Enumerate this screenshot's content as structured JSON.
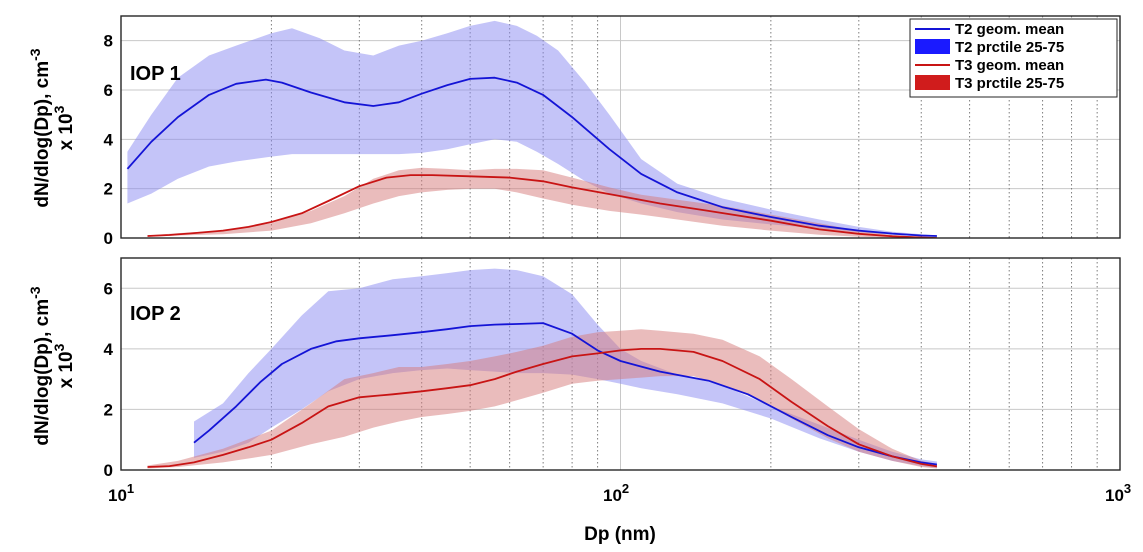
{
  "chart_data": [
    {
      "type": "area",
      "annotation": "IOP 1",
      "xlabel": "Dp (nm)",
      "ylabel": "dN/dlog(Dp), cm⁻³ x 10³",
      "ylabel_line1": "dN/dlog(Dp), cm",
      "ylabel_line1_sup": "-3",
      "ylabel_line2": "x 10",
      "ylabel_line2_sup": "3",
      "x_scale": "log",
      "xlim": [
        10,
        1000
      ],
      "ylim": [
        0,
        9
      ],
      "yticks": [
        "0",
        "2",
        "4",
        "6",
        "8"
      ],
      "grid": true,
      "legend_position": "top-right",
      "legend": [
        "T2 geom. mean",
        "T2 prctile 25-75",
        "T3 geom. mean",
        "T3 prctile 25-75"
      ],
      "series": [
        {
          "name": "T2 geom. mean",
          "kind": "line",
          "color": "#1414d6",
          "x": [
            10.3,
            11.5,
            13,
            15,
            17,
            19.5,
            21,
            24,
            28,
            32,
            36,
            40,
            45,
            50,
            56,
            62,
            70,
            80,
            95,
            110,
            130,
            160,
            200,
            250,
            300,
            350,
            400,
            430
          ],
          "values": [
            2.8,
            3.9,
            4.9,
            5.8,
            6.25,
            6.42,
            6.3,
            5.9,
            5.5,
            5.35,
            5.5,
            5.85,
            6.2,
            6.45,
            6.5,
            6.3,
            5.8,
            4.9,
            3.6,
            2.6,
            1.85,
            1.25,
            0.85,
            0.5,
            0.3,
            0.18,
            0.1,
            0.08
          ]
        },
        {
          "name": "T2 prctile 25-75",
          "kind": "band",
          "color": "#8a8af2",
          "x": [
            10.3,
            11.5,
            13,
            15,
            17,
            20,
            22,
            25,
            28,
            32,
            36,
            40,
            45,
            50,
            56,
            62,
            68,
            75,
            85,
            95,
            110,
            130,
            160,
            200,
            250,
            300,
            350,
            400,
            430
          ],
          "low": [
            1.4,
            1.8,
            2.4,
            2.9,
            3.1,
            3.3,
            3.4,
            3.4,
            3.4,
            3.4,
            3.4,
            3.45,
            3.6,
            3.8,
            4.0,
            3.9,
            3.5,
            3.0,
            2.3,
            1.8,
            1.4,
            1.05,
            0.75,
            0.55,
            0.38,
            0.23,
            0.13,
            0.06,
            0.05
          ],
          "high": [
            3.5,
            5.0,
            6.5,
            7.4,
            7.8,
            8.3,
            8.5,
            8.1,
            7.6,
            7.4,
            7.8,
            8.0,
            8.3,
            8.6,
            8.8,
            8.6,
            8.2,
            7.6,
            6.3,
            5.0,
            3.2,
            2.2,
            1.6,
            1.15,
            0.75,
            0.45,
            0.25,
            0.15,
            0.1
          ]
        },
        {
          "name": "T3 geom. mean",
          "kind": "line",
          "color": "#c81414",
          "x": [
            11.3,
            12.5,
            14,
            16,
            18,
            20,
            23,
            26,
            30,
            34,
            38,
            42,
            50,
            60,
            70,
            80,
            100,
            120,
            150,
            200,
            250,
            300,
            350,
            400,
            430
          ],
          "values": [
            0.08,
            0.12,
            0.2,
            0.3,
            0.45,
            0.65,
            1.0,
            1.5,
            2.1,
            2.45,
            2.55,
            2.55,
            2.5,
            2.45,
            2.3,
            2.05,
            1.7,
            1.4,
            1.1,
            0.7,
            0.35,
            0.17,
            0.07,
            0.02,
            0.0
          ]
        },
        {
          "name": "T3 prctile 25-75",
          "kind": "band",
          "color": "#d67a7a",
          "x": [
            11.3,
            13,
            16,
            20,
            24,
            28,
            32,
            36,
            40,
            45,
            50,
            56,
            62,
            70,
            80,
            95,
            110,
            130,
            160,
            200,
            250,
            300,
            350,
            400,
            430
          ],
          "low": [
            0.05,
            0.1,
            0.15,
            0.3,
            0.6,
            1.0,
            1.4,
            1.7,
            1.85,
            1.95,
            2.0,
            2.0,
            1.85,
            1.6,
            1.35,
            1.1,
            0.95,
            0.75,
            0.5,
            0.3,
            0.13,
            0.05,
            0.01,
            0.0,
            0.0
          ],
          "high": [
            0.1,
            0.2,
            0.3,
            0.6,
            1.1,
            1.7,
            2.4,
            2.75,
            2.85,
            2.8,
            2.75,
            2.8,
            2.8,
            2.75,
            2.45,
            2.05,
            1.75,
            1.55,
            1.3,
            0.95,
            0.6,
            0.3,
            0.12,
            0.04,
            0.02
          ]
        }
      ]
    },
    {
      "type": "area",
      "annotation": "IOP 2",
      "xlabel": "Dp (nm)",
      "ylabel": "dN/dlog(Dp), cm⁻³ x 10³",
      "ylabel_line1": "dN/dlog(Dp), cm",
      "ylabel_line1_sup": "-3",
      "ylabel_line2": "x 10",
      "ylabel_line2_sup": "3",
      "x_scale": "log",
      "xlim": [
        10,
        1000
      ],
      "ylim": [
        0,
        7
      ],
      "yticks": [
        "0",
        "2",
        "4",
        "6"
      ],
      "xtick_base": "10",
      "xtick_exponents": [
        "1",
        "2",
        "3"
      ],
      "grid": true,
      "series": [
        {
          "name": "T2 geom. mean",
          "kind": "line",
          "color": "#1414d6",
          "x": [
            14,
            15,
            17,
            19,
            21,
            24,
            27,
            30,
            35,
            40,
            45,
            50,
            56,
            62,
            70,
            80,
            90,
            100,
            120,
            150,
            180,
            220,
            260,
            300,
            350,
            400,
            430
          ],
          "values": [
            0.9,
            1.3,
            2.1,
            2.9,
            3.5,
            4.0,
            4.25,
            4.35,
            4.45,
            4.55,
            4.65,
            4.75,
            4.8,
            4.82,
            4.85,
            4.5,
            3.95,
            3.6,
            3.25,
            2.95,
            2.5,
            1.75,
            1.15,
            0.75,
            0.45,
            0.25,
            0.18
          ]
        },
        {
          "name": "T2 prctile 25-75",
          "kind": "band",
          "color": "#8a8af2",
          "x": [
            14,
            16,
            18,
            20,
            23,
            26,
            30,
            35,
            40,
            45,
            50,
            56,
            62,
            70,
            80,
            90,
            100,
            110,
            130,
            160,
            200,
            250,
            300,
            350,
            400,
            430
          ],
          "low": [
            0.4,
            0.6,
            0.9,
            1.4,
            2.0,
            2.6,
            3.0,
            3.2,
            3.3,
            3.35,
            3.3,
            3.25,
            3.2,
            3.2,
            3.15,
            3.0,
            2.85,
            2.7,
            2.5,
            2.2,
            1.7,
            1.05,
            0.6,
            0.3,
            0.13,
            0.07
          ],
          "high": [
            1.6,
            2.2,
            3.2,
            4.0,
            5.1,
            5.9,
            6.0,
            6.3,
            6.4,
            6.5,
            6.6,
            6.65,
            6.6,
            6.4,
            5.8,
            4.8,
            4.0,
            3.6,
            3.15,
            2.8,
            2.1,
            1.5,
            1.0,
            0.6,
            0.35,
            0.28
          ]
        },
        {
          "name": "T3 geom. mean",
          "kind": "line",
          "color": "#c81414",
          "x": [
            11.3,
            12.5,
            14,
            16,
            18,
            20,
            23,
            26,
            30,
            35,
            40,
            45,
            50,
            56,
            62,
            70,
            80,
            90,
            100,
            110,
            120,
            140,
            160,
            190,
            220,
            260,
            300,
            350,
            400,
            430
          ],
          "values": [
            0.1,
            0.13,
            0.25,
            0.5,
            0.75,
            1.0,
            1.55,
            2.1,
            2.4,
            2.5,
            2.6,
            2.7,
            2.8,
            3.0,
            3.25,
            3.5,
            3.75,
            3.85,
            3.95,
            4.0,
            4.0,
            3.9,
            3.6,
            3.0,
            2.25,
            1.45,
            0.85,
            0.45,
            0.2,
            0.12
          ]
        },
        {
          "name": "T3 prctile 25-75",
          "kind": "band",
          "color": "#d67a7a",
          "x": [
            11.3,
            13,
            16,
            20,
            24,
            28,
            32,
            36,
            40,
            45,
            50,
            56,
            62,
            70,
            80,
            90,
            100,
            110,
            120,
            140,
            160,
            190,
            220,
            260,
            300,
            350,
            400,
            430
          ],
          "low": [
            0.05,
            0.1,
            0.25,
            0.5,
            0.85,
            1.1,
            1.4,
            1.6,
            1.75,
            1.85,
            1.95,
            2.1,
            2.3,
            2.55,
            2.85,
            2.95,
            3.0,
            3.05,
            3.1,
            3.1,
            2.8,
            2.3,
            1.7,
            1.05,
            0.6,
            0.3,
            0.1,
            0.05
          ],
          "high": [
            0.15,
            0.3,
            0.7,
            1.3,
            2.2,
            3.0,
            3.2,
            3.4,
            3.4,
            3.5,
            3.6,
            3.75,
            3.9,
            4.1,
            4.4,
            4.55,
            4.6,
            4.65,
            4.6,
            4.5,
            4.3,
            3.75,
            3.0,
            2.1,
            1.35,
            0.7,
            0.3,
            0.2
          ]
        }
      ]
    }
  ]
}
